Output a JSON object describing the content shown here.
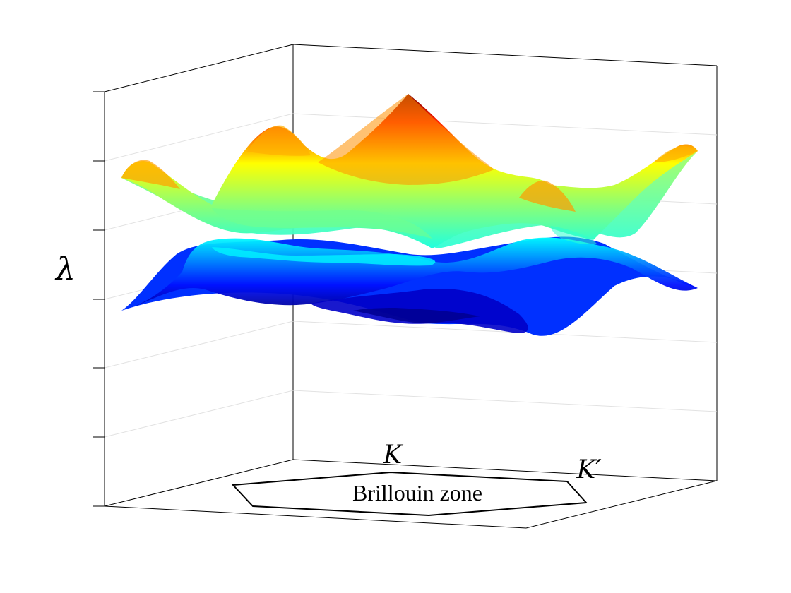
{
  "chart_data": {
    "type": "surface",
    "title": "",
    "zlabel": "λ",
    "colormap": "jet",
    "colormap_stops": [
      "#00008f",
      "#0000ff",
      "#00ffff",
      "#ffff00",
      "#ff0000",
      "#800000"
    ],
    "tick_labels": "none",
    "grid": "on",
    "bands": [
      {
        "name": "",
        "position": "upper"
      },
      {
        "name": "",
        "position": "lower"
      }
    ],
    "base_annotations": {
      "zone_label": "Brillouin zone",
      "point_k": "K",
      "point_k_prime": "K′"
    }
  }
}
